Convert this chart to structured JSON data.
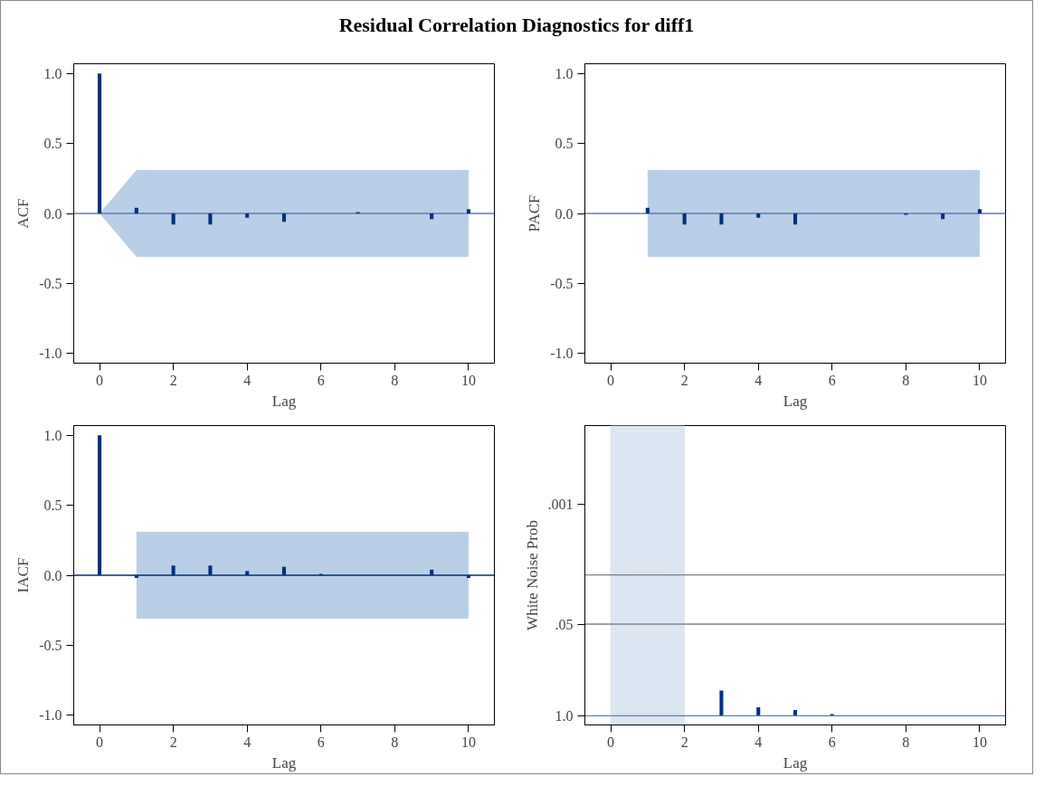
{
  "chart_data": [
    {
      "type": "bar",
      "title": "Residual Correlation Diagnostics for diff1",
      "xlabel": "Lag",
      "ylabel": "ACF",
      "xlim": [
        -0.7,
        10.7
      ],
      "xticks": [
        0,
        2,
        4,
        6,
        8,
        10
      ],
      "ylim": [
        -1.07,
        1.07
      ],
      "yticks": [
        {
          "value": -1,
          "label": "-1.0"
        },
        {
          "value": -0.5,
          "label": "-0.5"
        },
        {
          "value": 0,
          "label": "0.0"
        },
        {
          "value": 0.5,
          "label": "0.5"
        },
        {
          "value": 1,
          "label": "1.0"
        }
      ],
      "series": [
        {
          "type": "line",
          "color": "#5b7fb5",
          "x": [
            -0.7,
            0,
            1,
            2,
            3,
            4,
            5,
            6,
            7,
            8,
            9,
            10,
            10.7
          ],
          "values": [
            0,
            0,
            0,
            0,
            0,
            0,
            0,
            0,
            0,
            0,
            0,
            0,
            0
          ],
          "lower": [
            null,
            0,
            -0.31,
            -0.31,
            -0.31,
            -0.31,
            -0.31,
            -0.31,
            -0.31,
            -0.31,
            -0.31,
            -0.31,
            null
          ],
          "upper": [
            null,
            0,
            0.31,
            0.31,
            0.31,
            0.31,
            0.31,
            0.31,
            0.31,
            0.31,
            0.31,
            0.31,
            null
          ]
        },
        {
          "color": "#00307a",
          "x": [
            0,
            1,
            2,
            3,
            4,
            5,
            6,
            7,
            8,
            9,
            10
          ],
          "values": [
            1.0,
            0.04,
            -0.08,
            -0.08,
            -0.03,
            -0.06,
            0,
            0.01,
            0,
            -0.04,
            0.03
          ]
        }
      ]
    },
    {
      "type": "bar",
      "xlabel": "Lag",
      "ylabel": "PACF",
      "xlim": [
        -0.7,
        10.7
      ],
      "xticks": [
        0,
        2,
        4,
        6,
        8,
        10
      ],
      "ylim": [
        -1.07,
        1.07
      ],
      "yticks": [
        {
          "value": -1,
          "label": "-1.0"
        },
        {
          "value": -0.5,
          "label": "-0.5"
        },
        {
          "value": 0,
          "label": "0.0"
        },
        {
          "value": 0.5,
          "label": "0.5"
        },
        {
          "value": 1,
          "label": "1.0"
        }
      ],
      "series": [
        {
          "type": "line",
          "color": "#5b7fb5",
          "x": [
            -0.7,
            1,
            2,
            3,
            4,
            5,
            6,
            7,
            8,
            9,
            10,
            10.7
          ],
          "values": [
            0,
            0,
            0,
            0,
            0,
            0,
            0,
            0,
            0,
            0,
            0,
            0
          ],
          "lower": [
            null,
            -0.31,
            -0.31,
            -0.31,
            -0.31,
            -0.31,
            -0.31,
            -0.31,
            -0.31,
            -0.31,
            -0.31,
            null
          ],
          "upper": [
            null,
            0.31,
            0.31,
            0.31,
            0.31,
            0.31,
            0.31,
            0.31,
            0.31,
            0.31,
            0.31,
            null
          ]
        },
        {
          "color": "#00307a",
          "x": [
            1,
            2,
            3,
            4,
            5,
            6,
            7,
            8,
            9,
            10
          ],
          "values": [
            0.04,
            -0.08,
            -0.08,
            -0.03,
            -0.08,
            0,
            0,
            -0.01,
            -0.04,
            0.03
          ]
        }
      ]
    },
    {
      "type": "bar",
      "xlabel": "Lag",
      "ylabel": "IACF",
      "xlim": [
        -0.7,
        10.7
      ],
      "xticks": [
        0,
        2,
        4,
        6,
        8,
        10
      ],
      "ylim": [
        -1.07,
        1.07
      ],
      "yticks": [
        {
          "value": -1,
          "label": "-1.0"
        },
        {
          "value": -0.5,
          "label": "-0.5"
        },
        {
          "value": 0,
          "label": "0.0"
        },
        {
          "value": 0.5,
          "label": "0.5"
        },
        {
          "value": 1,
          "label": "1.0"
        }
      ],
      "series": [
        {
          "type": "line",
          "color": "#00307a",
          "x": [
            -0.7,
            0,
            1,
            2,
            3,
            4,
            5,
            6,
            7,
            8,
            9,
            10,
            10.7
          ],
          "values": [
            0,
            0,
            0,
            0,
            0,
            0,
            0,
            0,
            0,
            0,
            0,
            0,
            0
          ],
          "lower": [
            null,
            null,
            -0.31,
            -0.31,
            -0.31,
            -0.31,
            -0.31,
            -0.31,
            -0.31,
            -0.31,
            -0.31,
            -0.31,
            null
          ],
          "upper": [
            null,
            null,
            0.31,
            0.31,
            0.31,
            0.31,
            0.31,
            0.31,
            0.31,
            0.31,
            0.31,
            0.31,
            null
          ]
        },
        {
          "color": "#00307a",
          "x": [
            0,
            1,
            2,
            3,
            4,
            5,
            6,
            7,
            8,
            9,
            10
          ],
          "values": [
            1.0,
            -0.02,
            0.07,
            0.07,
            0.03,
            0.06,
            0.01,
            0,
            0,
            0.04,
            -0.02
          ]
        }
      ]
    },
    {
      "type": "bar",
      "xlabel": "Lag",
      "ylabel": "White Noise Prob",
      "log": "y",
      "xlim": [
        -0.7,
        10.7
      ],
      "xticks": [
        0,
        2,
        4,
        6,
        8,
        10
      ],
      "ylim": [
        1.35,
        7.6e-05
      ],
      "yticks": [
        {
          "value": 1,
          "label": "1.0"
        },
        {
          "value": 0.05,
          "label": ".05"
        },
        {
          "value": 0.001,
          "label": ".001"
        }
      ],
      "series": [
        {
          "color": "#00307a",
          "x": [
            3,
            4,
            5,
            6
          ],
          "base": [
            1,
            1,
            1,
            1
          ],
          "values": [
            -0.56,
            -0.24,
            -0.17,
            -0.05
          ]
        }
      ],
      "bands": [
        {
          "axis": "x",
          "from": 0,
          "to": 2,
          "color": "#dce6f2"
        }
      ],
      "ref_lines": [
        {
          "axis": "y",
          "value": 0.05,
          "color": "#808080"
        },
        {
          "axis": "y",
          "value": 0.01,
          "color": "#808080"
        },
        {
          "axis": "y",
          "value": 1,
          "color": "#5b7fb5"
        }
      ]
    }
  ]
}
